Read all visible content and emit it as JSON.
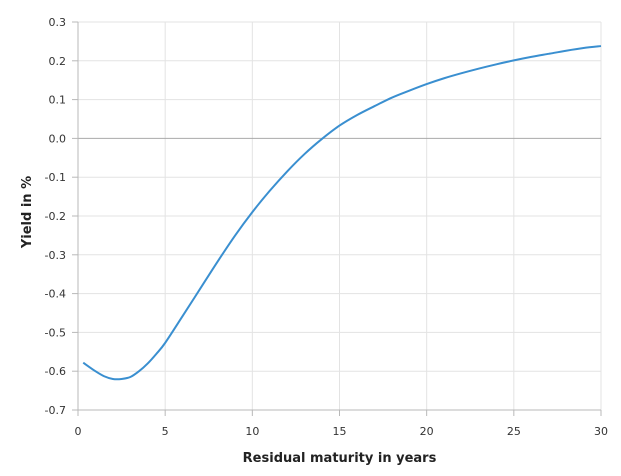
{
  "chart_data": {
    "type": "line",
    "title": "",
    "xlabel": "Residual maturity in years",
    "ylabel": "Yield in %",
    "xlim": [
      0,
      30
    ],
    "ylim": [
      -0.7,
      0.3
    ],
    "x_ticks": [
      "0",
      "5",
      "10",
      "15",
      "20",
      "25",
      "30"
    ],
    "y_ticks": [
      "0.3",
      "0.2",
      "0.1",
      "0.0",
      "-0.1",
      "-0.2",
      "-0.3",
      "-0.4",
      "-0.5",
      "-0.6",
      "-0.7"
    ],
    "grid": true,
    "legend": "none",
    "colors": {
      "line": "#3a8fd0",
      "grid": "#e3e3e3",
      "zero_line": "#a9a9a9",
      "axis": "#b8b8b8"
    },
    "series": [
      {
        "x": [
          0.3,
          1,
          1.5,
          2,
          2.5,
          3,
          3.5,
          4,
          4.5,
          5,
          6,
          7,
          8,
          9,
          10,
          11,
          12,
          13,
          14,
          15,
          16,
          17,
          18,
          19,
          20,
          21,
          22,
          23,
          24,
          25,
          26,
          27,
          28,
          29,
          30
        ],
        "y": [
          -0.578,
          -0.6,
          -0.613,
          -0.62,
          -0.62,
          -0.615,
          -0.6,
          -0.58,
          -0.555,
          -0.527,
          -0.458,
          -0.388,
          -0.318,
          -0.251,
          -0.19,
          -0.135,
          -0.085,
          -0.04,
          -0.001,
          0.033,
          0.06,
          0.083,
          0.105,
          0.123,
          0.14,
          0.155,
          0.168,
          0.18,
          0.191,
          0.201,
          0.21,
          0.218,
          0.226,
          0.233,
          0.238
        ]
      }
    ]
  }
}
